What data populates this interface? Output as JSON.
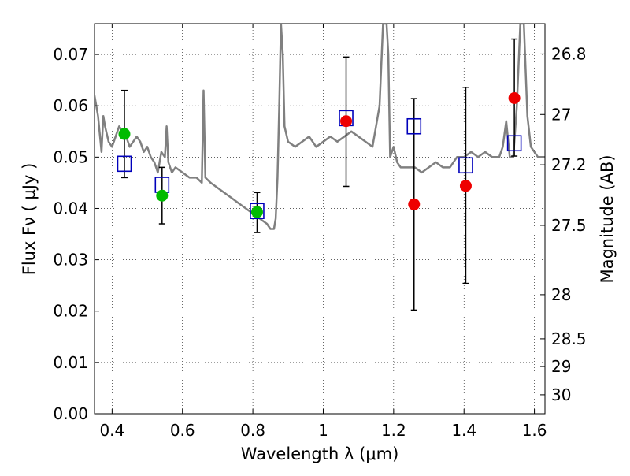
{
  "chart_data": {
    "type": "scatter",
    "xlabel": "Wavelength  λ (μm)",
    "ylabel": "Flux  Fν  ( μJy )",
    "ylabel_right": "Magnitude (AB)",
    "xlim": [
      0.35,
      1.63
    ],
    "ylim": [
      0.0,
      0.076
    ],
    "grid": true,
    "x_ticks": [
      0.4,
      0.6,
      0.8,
      1.0,
      1.2,
      1.4,
      1.6
    ],
    "x_tick_labels": [
      "0.4",
      "0.6",
      "0.8",
      "1",
      "1.2",
      "1.4",
      "1.6"
    ],
    "y_ticks": [
      0.0,
      0.01,
      0.02,
      0.03,
      0.04,
      0.05,
      0.06,
      0.07
    ],
    "y_tick_labels": [
      "0.00",
      "0.01",
      "0.02",
      "0.03",
      "0.04",
      "0.05",
      "0.06",
      "0.07"
    ],
    "right_ticks": [
      {
        "label": "26.8",
        "flux": 0.0701
      },
      {
        "label": "27",
        "flux": 0.0583
      },
      {
        "label": "27.2",
        "flux": 0.0485
      },
      {
        "label": "27.5",
        "flux": 0.0367
      },
      {
        "label": "28",
        "flux": 0.0232
      },
      {
        "label": "28.5",
        "flux": 0.0146
      },
      {
        "label": "29",
        "flux": 0.0092
      },
      {
        "label": "30",
        "flux": 0.0037
      }
    ],
    "series": [
      {
        "kind": "spectrum",
        "color": "#808080",
        "x": [
          0.35,
          0.36,
          0.37,
          0.375,
          0.38,
          0.39,
          0.4,
          0.41,
          0.42,
          0.43,
          0.44,
          0.45,
          0.46,
          0.47,
          0.48,
          0.49,
          0.5,
          0.51,
          0.52,
          0.53,
          0.54,
          0.55,
          0.555,
          0.56,
          0.57,
          0.58,
          0.6,
          0.62,
          0.64,
          0.655,
          0.66,
          0.665,
          0.68,
          0.7,
          0.72,
          0.74,
          0.76,
          0.78,
          0.8,
          0.82,
          0.84,
          0.85,
          0.86,
          0.865,
          0.87,
          0.875,
          0.88,
          0.885,
          0.89,
          0.9,
          0.92,
          0.94,
          0.96,
          0.98,
          1.0,
          1.02,
          1.04,
          1.06,
          1.08,
          1.1,
          1.12,
          1.14,
          1.16,
          1.17,
          1.18,
          1.185,
          1.19,
          1.2,
          1.21,
          1.22,
          1.24,
          1.26,
          1.28,
          1.3,
          1.32,
          1.34,
          1.36,
          1.38,
          1.4,
          1.42,
          1.44,
          1.46,
          1.48,
          1.5,
          1.51,
          1.52,
          1.53,
          1.54,
          1.55,
          1.56,
          1.57,
          1.58,
          1.59,
          1.6,
          1.61,
          1.62,
          1.63
        ],
        "y": [
          0.062,
          0.058,
          0.051,
          0.058,
          0.056,
          0.053,
          0.052,
          0.054,
          0.056,
          0.055,
          0.054,
          0.052,
          0.053,
          0.054,
          0.053,
          0.051,
          0.052,
          0.05,
          0.049,
          0.047,
          0.051,
          0.05,
          0.056,
          0.049,
          0.047,
          0.048,
          0.047,
          0.046,
          0.046,
          0.045,
          0.063,
          0.046,
          0.045,
          0.044,
          0.043,
          0.042,
          0.041,
          0.04,
          0.039,
          0.038,
          0.037,
          0.036,
          0.036,
          0.038,
          0.046,
          0.06,
          0.076,
          0.07,
          0.056,
          0.053,
          0.052,
          0.053,
          0.054,
          0.052,
          0.053,
          0.054,
          0.053,
          0.054,
          0.055,
          0.054,
          0.053,
          0.052,
          0.06,
          0.076,
          0.076,
          0.07,
          0.05,
          0.052,
          0.049,
          0.048,
          0.048,
          0.048,
          0.047,
          0.048,
          0.049,
          0.048,
          0.048,
          0.05,
          0.05,
          0.051,
          0.05,
          0.051,
          0.05,
          0.05,
          0.052,
          0.057,
          0.05,
          0.05,
          0.06,
          0.076,
          0.076,
          0.058,
          0.052,
          0.051,
          0.05,
          0.05,
          0.05
        ]
      },
      {
        "kind": "open-square",
        "color": "#0000bb",
        "x": [
          0.435,
          0.542,
          0.812,
          1.065,
          1.258,
          1.405,
          1.543
        ],
        "y": [
          0.0487,
          0.0446,
          0.0395,
          0.0576,
          0.056,
          0.0484,
          0.0527
        ]
      },
      {
        "kind": "filled-circle",
        "color": "#00bb00",
        "x": [
          0.435,
          0.542,
          0.812
        ],
        "y": [
          0.0545,
          0.0425,
          0.0393
        ],
        "yerr_low": [
          0.0085,
          0.0055,
          0.004
        ],
        "yerr_high": [
          0.0085,
          0.0055,
          0.0038
        ]
      },
      {
        "kind": "filled-circle",
        "color": "#ee0000",
        "x": [
          1.065,
          1.258,
          1.405,
          1.543
        ],
        "y": [
          0.057,
          0.0408,
          0.0444,
          0.0615
        ],
        "yerr_low": [
          0.0127,
          0.0206,
          0.019,
          0.0113
        ],
        "yerr_high": [
          0.0125,
          0.0206,
          0.0192,
          0.0115
        ]
      }
    ]
  }
}
